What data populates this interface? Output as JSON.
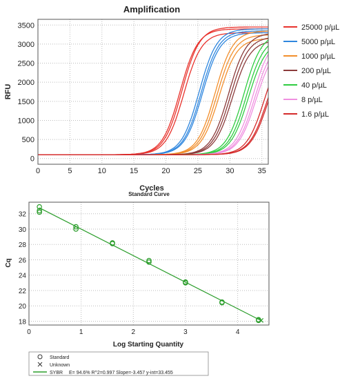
{
  "chart_data": [
    {
      "type": "line",
      "title": "Amplification",
      "xlabel": "Cycles",
      "ylabel": "RFU",
      "xlim": [
        0,
        36
      ],
      "ylim": [
        -150,
        3650
      ],
      "xticks": [
        0,
        5,
        10,
        15,
        20,
        25,
        30,
        35
      ],
      "yticks": [
        0,
        500,
        1000,
        1500,
        2000,
        2500,
        3000,
        3500
      ],
      "grid": "dotted",
      "legend_position": "right",
      "baseline_rfu": 100,
      "series": [
        {
          "name": "25000 p/µL",
          "color": "#e8322c",
          "replicates": [
            {
              "ct": 22.2,
              "max": 3400
            },
            {
              "ct": 22.5,
              "max": 3450
            },
            {
              "ct": 22.8,
              "max": 3300
            }
          ]
        },
        {
          "name": "5000 p/µL",
          "color": "#2e86de",
          "replicates": [
            {
              "ct": 25.2,
              "max": 3400
            },
            {
              "ct": 25.5,
              "max": 3350
            },
            {
              "ct": 25.7,
              "max": 3300
            }
          ]
        },
        {
          "name": "1000 p/µL",
          "color": "#f28e2b",
          "replicates": [
            {
              "ct": 27.7,
              "max": 3350
            },
            {
              "ct": 28.0,
              "max": 3250
            },
            {
              "ct": 28.3,
              "max": 3150
            }
          ]
        },
        {
          "name": "200 p/µL",
          "color": "#8b3a3a",
          "replicates": [
            {
              "ct": 29.8,
              "max": 3300
            },
            {
              "ct": 30.1,
              "max": 3200
            },
            {
              "ct": 30.4,
              "max": 3100
            }
          ]
        },
        {
          "name": "40 p/µL",
          "color": "#2ecc40",
          "replicates": [
            {
              "ct": 32.2,
              "max": 3300
            },
            {
              "ct": 32.6,
              "max": 3200
            },
            {
              "ct": 32.9,
              "max": 3100
            }
          ]
        },
        {
          "name": "8 p/µL",
          "color": "#f08fe0",
          "replicates": [
            {
              "ct": 33.6,
              "max": 3200
            },
            {
              "ct": 33.9,
              "max": 3100
            },
            {
              "ct": 34.1,
              "max": 3000
            }
          ]
        },
        {
          "name": "1.6 p/µL",
          "color": "#d42a2a",
          "replicates": [
            {
              "ct": 35.4,
              "max": 3000
            },
            {
              "ct": 35.8,
              "max": 2900
            },
            {
              "ct": 36.0,
              "max": 2900
            }
          ]
        }
      ]
    },
    {
      "type": "scatter",
      "title": "Standard Curve",
      "xlabel": "Log Starting Quantity",
      "ylabel": "Cq",
      "xlim": [
        0,
        4.6
      ],
      "ylim": [
        17.5,
        33.5
      ],
      "xticks": [
        0,
        1,
        2,
        3,
        4
      ],
      "yticks": [
        18,
        20,
        22,
        24,
        26,
        28,
        30,
        32
      ],
      "grid": "dotted",
      "color": "#2a9d2a",
      "points": [
        {
          "x": 0.2,
          "y": 32.9
        },
        {
          "x": 0.2,
          "y": 32.4
        },
        {
          "x": 0.2,
          "y": 32.2
        },
        {
          "x": 0.9,
          "y": 30.3
        },
        {
          "x": 0.9,
          "y": 30.0
        },
        {
          "x": 1.6,
          "y": 28.2
        },
        {
          "x": 1.6,
          "y": 28.1
        },
        {
          "x": 2.3,
          "y": 25.9
        },
        {
          "x": 2.3,
          "y": 25.7
        },
        {
          "x": 3.0,
          "y": 23.1
        },
        {
          "x": 3.0,
          "y": 23.0
        },
        {
          "x": 3.7,
          "y": 20.5
        },
        {
          "x": 3.7,
          "y": 20.4
        },
        {
          "x": 4.4,
          "y": 18.2
        },
        {
          "x": 4.4,
          "y": 18.1
        }
      ],
      "fit": {
        "slope": -3.457,
        "intercept": 33.455,
        "x_range": [
          0.2,
          4.45
        ]
      },
      "legend": [
        {
          "symbol": "circle",
          "label": "Standard"
        },
        {
          "symbol": "x",
          "label": "Unknown"
        },
        {
          "symbol": "line",
          "label": "SYBR",
          "stats": "E= 94.6% R^2=0.997 Slope=-3.457 y-int=33.455"
        }
      ]
    }
  ]
}
